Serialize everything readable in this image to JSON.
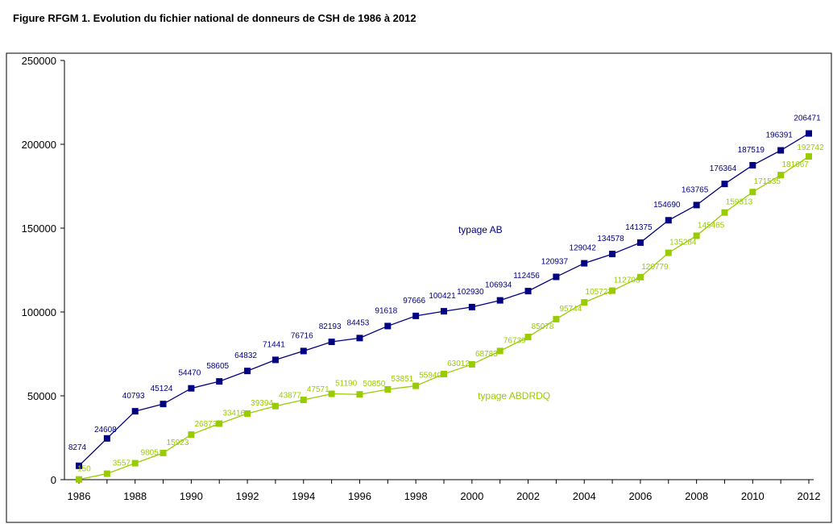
{
  "figure_title": "Figure RFGM 1. Evolution du fichier national de donneurs de CSH de 1986 à 2012",
  "colors": {
    "series_ab": "#000080",
    "series_abdrdq": "#99cc00",
    "axis": "#000000"
  },
  "chart_data": {
    "type": "line",
    "title": "Figure RFGM 1. Evolution du fichier national de donneurs de CSH de 1986 à 2012",
    "xlabel": "",
    "ylabel": "",
    "x": [
      1986,
      1987,
      1988,
      1989,
      1990,
      1991,
      1992,
      1993,
      1994,
      1995,
      1996,
      1997,
      1998,
      1999,
      2000,
      2001,
      2002,
      2003,
      2004,
      2005,
      2006,
      2007,
      2008,
      2009,
      2010,
      2011,
      2012
    ],
    "x_tick_labels": [
      "1986",
      "1988",
      "1990",
      "1992",
      "1994",
      "1996",
      "1998",
      "2000",
      "2002",
      "2004",
      "2006",
      "2008",
      "2010",
      "2012"
    ],
    "y_tick_labels": [
      "0",
      "50000",
      "100000",
      "150000",
      "200000",
      "250000"
    ],
    "ylim": [
      0,
      250000
    ],
    "grid": false,
    "series": [
      {
        "name": "typage AB",
        "color": "#000080",
        "values": [
          8274,
          24608,
          40793,
          45124,
          54470,
          58605,
          64832,
          71441,
          76716,
          82193,
          84453,
          91618,
          97666,
          100421,
          102930,
          106934,
          112456,
          120937,
          129042,
          134578,
          141375,
          154690,
          163765,
          176364,
          187519,
          196391,
          206471
        ]
      },
      {
        "name": "typage ABDRDQ",
        "color": "#99cc00",
        "values": [
          150,
          3557,
          9805,
          15923,
          26873,
          33416,
          39394,
          43877,
          47571,
          51190,
          50850,
          53851,
          55940,
          63012,
          68783,
          76739,
          85078,
          95744,
          105723,
          112708,
          120779,
          135284,
          145465,
          159313,
          171535,
          181667,
          192742
        ]
      }
    ]
  }
}
